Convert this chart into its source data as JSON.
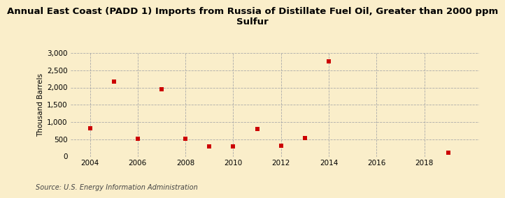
{
  "title": "Annual East Coast (PADD 1) Imports from Russia of Distillate Fuel Oil, Greater than 2000 ppm\nSulfur",
  "ylabel": "Thousand Barrels",
  "source": "Source: U.S. Energy Information Administration",
  "background_color": "#faeeca",
  "plot_background_color": "#faeeca",
  "data_x": [
    2004,
    2005,
    2006,
    2007,
    2008,
    2009,
    2010,
    2011,
    2012,
    2013,
    2014,
    2019
  ],
  "data_y": [
    820,
    2180,
    510,
    1950,
    510,
    300,
    300,
    800,
    310,
    530,
    2760,
    110
  ],
  "marker_color": "#cc0000",
  "marker_size": 5,
  "xlim": [
    2003.2,
    2020.3
  ],
  "ylim": [
    0,
    3000
  ],
  "xticks": [
    2004,
    2006,
    2008,
    2010,
    2012,
    2014,
    2016,
    2018
  ],
  "yticks": [
    0,
    500,
    1000,
    1500,
    2000,
    2500,
    3000
  ],
  "grid_color": "#aaaaaa",
  "title_fontsize": 9.5,
  "axis_fontsize": 7.5,
  "source_fontsize": 7
}
